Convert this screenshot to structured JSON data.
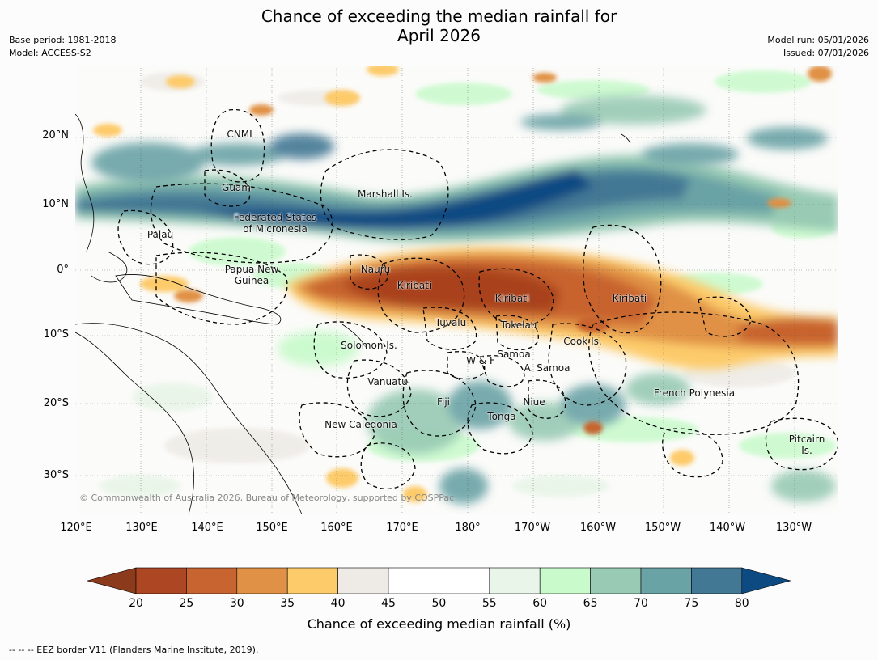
{
  "title_line1": "Chance of exceeding the median rainfall for",
  "title_line2": "April 2026",
  "meta_left": {
    "base_period": "Base period: 1981-2018",
    "model": "Model: ACCESS-S2"
  },
  "meta_right": {
    "model_run": "Model run: 05/01/2026",
    "issued": "Issued: 07/01/2026"
  },
  "lat_labels": [
    "20°N",
    "10°N",
    "0°",
    "10°S",
    "20°S",
    "30°S"
  ],
  "lon_labels": [
    "120°E",
    "130°E",
    "140°E",
    "150°E",
    "160°E",
    "170°E",
    "180°",
    "170°W",
    "160°W",
    "150°W",
    "140°W",
    "130°W"
  ],
  "regions": {
    "cnmi": "CNMI",
    "guam": "Guam",
    "marshall": "Marshall Is.",
    "fsm_line1": "Federated States",
    "fsm_line2": "of Micronesia",
    "palau": "Palau",
    "png_line1": "Papua New",
    "png_line2": "Guinea",
    "nauru": "Nauru",
    "kiribati_west": "Kiribati",
    "kiribati_central": "Kiribati",
    "kiribati_east": "Kiribati",
    "tuvalu": "Tuvalu",
    "tokelau": "Tokelau",
    "cook": "Cook Is.",
    "solomon": "Solomon Is.",
    "wf": "W & F",
    "samoa": "Samoa",
    "asamoa": "A. Samoa",
    "vanuatu": "Vanuatu",
    "fiji": "Fiji",
    "niue": "Niue",
    "tonga": "Tonga",
    "french_polynesia": "French Polynesia",
    "new_caledonia": "New Caledonia",
    "pitcairn_line1": "Pitcairn",
    "pitcairn_line2": "Is."
  },
  "copyright": "© Commonwealth of Australia 2026, Bureau of Meteorology, supported by COSPPac",
  "colorbar": {
    "ticks": [
      "20",
      "25",
      "30",
      "35",
      "40",
      "45",
      "50",
      "55",
      "60",
      "65",
      "70",
      "75",
      "80"
    ],
    "under_color": "#8c3a1c",
    "over_color": "#0e4a82",
    "colors": [
      "#ac4623",
      "#c86430",
      "#e09145",
      "#fdcb6a",
      "#eeebe6",
      "#ffffff",
      "#ffffff",
      "#e8f5e8",
      "#c8facb",
      "#98cab4",
      "#6aa3a6",
      "#437894"
    ],
    "title": "Chance of exceeding median rainfall (%)"
  },
  "footnote": "--  --  -- EEZ border V11 (Flanders Marine Institute, 2019).",
  "map_colors": {
    "dry_strong": "#a9431f",
    "dry_mid": "#c8642f",
    "dry_light": "#fdcb6a",
    "neutral": "#eeebe6",
    "wet_light": "#c8facb",
    "wet_mid": "#98cab4",
    "wet_teal": "#6aa3a6",
    "wet_strong": "#437894",
    "wet_extreme": "#0e4a82"
  }
}
